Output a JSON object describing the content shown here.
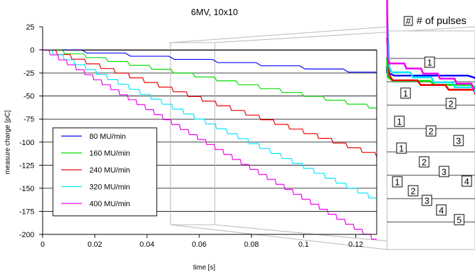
{
  "chart_data": {
    "type": "line",
    "title": "6MV, 10x10",
    "xlabel": "time [s]",
    "ylabel": "measure charge [pC]",
    "xlim": [
      0,
      0.128
    ],
    "ylim": [
      -200,
      25
    ],
    "x_ticks": [
      "0",
      "0.02",
      "0.04",
      "0.06",
      "0.08",
      "0.1",
      "0.12"
    ],
    "y_ticks": [
      "25",
      "0",
      "-25",
      "-50",
      "-75",
      "-100",
      "-125",
      "-150",
      "-175",
      "-200"
    ],
    "grid": "horizontal",
    "legend_position": "left",
    "series": [
      {
        "name": "80 MU/min",
        "color": "#0000ff",
        "pulse_period_s": 0.0167,
        "step_pC": -3.45,
        "t0_s": 0.015
      },
      {
        "name": "160 MU/min",
        "color": "#00dd00",
        "pulse_period_s": 0.00833,
        "step_pC": -4.2,
        "t0_s": 0.0075
      },
      {
        "name": "240 MU/min",
        "color": "#ee0000",
        "pulse_period_s": 0.00556,
        "step_pC": -5.05,
        "t0_s": 0.005
      },
      {
        "name": "320 MU/min",
        "color": "#00e5ff",
        "pulse_period_s": 0.00417,
        "step_pC": -5.35,
        "t0_s": 0.0036
      },
      {
        "name": "400 MU/min",
        "color": "#ee00ee",
        "pulse_period_s": 0.00333,
        "step_pC": -5.4,
        "t0_s": 0.0025
      }
    ],
    "inset": {
      "title": "# of pulses",
      "zoom_range_s": [
        0.049,
        0.066
      ],
      "pulse_labels": [
        [
          "1"
        ],
        [
          "1",
          "2"
        ],
        [
          "1",
          "2",
          "3"
        ],
        [
          "1",
          "2",
          "3",
          "4"
        ],
        [
          "1",
          "2",
          "3",
          "4",
          "5"
        ]
      ]
    }
  }
}
